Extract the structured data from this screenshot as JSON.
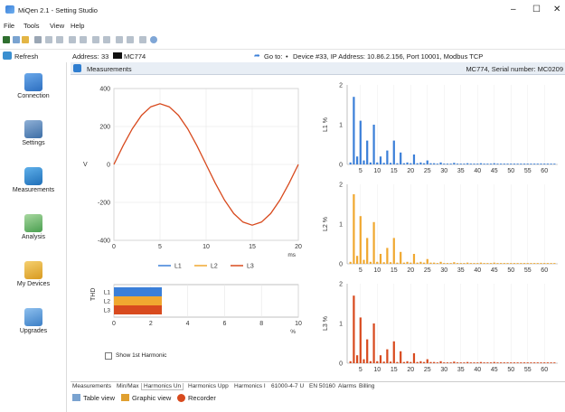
{
  "window": {
    "title": "MiQen 2.1 - Setting Studio",
    "minimize": "–",
    "maximize": "☐",
    "close": "✕"
  },
  "menu": [
    "File",
    "Tools",
    "View",
    "Help"
  ],
  "toolbar": {
    "refresh_label": "Refresh"
  },
  "address": {
    "label": "Address:",
    "value": "33",
    "device_name": "MC774",
    "goto_label": "Go to:",
    "device_info": "Device #33, IP Address: 10.86.2.156, Port 10001, Modbus TCP"
  },
  "sidebar": {
    "items": [
      {
        "label": "Connection",
        "icon": "computer-icon",
        "color": "#3d7fd6"
      },
      {
        "label": "Settings",
        "icon": "settings-icon",
        "color": "#5a7fa8"
      },
      {
        "label": "Measurements",
        "icon": "gauge-icon",
        "color": "#3a8fd0"
      },
      {
        "label": "Analysis",
        "icon": "chart-icon",
        "color": "#4caf50"
      },
      {
        "label": "My Devices",
        "icon": "folder-icon",
        "color": "#e8b030"
      },
      {
        "label": "Upgrades",
        "icon": "upgrade-icon",
        "color": "#4a90d0"
      }
    ]
  },
  "panel": {
    "title": "Measurements",
    "serial": "MC774, Serial number: MC0209"
  },
  "tabs": [
    "Measurements",
    "Min/Max",
    "Harmonics Un",
    "Harmonics Upp",
    "Harmonics I",
    "61000-4-7 U",
    "EN 50160",
    "Alarms",
    "Billing"
  ],
  "active_tab": "Harmonics Un",
  "bottom": {
    "table_view": "Table view",
    "graphic_view": "Graphic view",
    "recorder": "Recorder"
  },
  "show_1st_harmonic": "Show 1st Harmonic",
  "colors": {
    "L1": "#3b7fd8",
    "L2": "#f0a830",
    "L3": "#d84a1e"
  },
  "chart_data": [
    {
      "type": "line",
      "xlabel": "ms",
      "ylabel": "V",
      "xlim": [
        0,
        20
      ],
      "ylim": [
        -400,
        400
      ],
      "xticks": [
        0,
        5,
        10,
        15,
        20
      ],
      "yticks": [
        400,
        200,
        0,
        -200,
        -400
      ],
      "grid": true,
      "legend": [
        "L1",
        "L2",
        "L3"
      ],
      "series": [
        {
          "name": "L3",
          "x": [
            0,
            1,
            2,
            3,
            4,
            5,
            6,
            7,
            8,
            9,
            10,
            11,
            12,
            13,
            14,
            15,
            16,
            17,
            18,
            19,
            20
          ],
          "y": [
            0,
            99,
            188,
            259,
            304,
            320,
            304,
            259,
            188,
            99,
            0,
            -99,
            -188,
            -259,
            -304,
            -320,
            -304,
            -259,
            -188,
            -99,
            0
          ]
        }
      ]
    },
    {
      "type": "bar",
      "orientation": "horizontal",
      "ylabel": "THD",
      "xlabel": "%",
      "xlim": [
        0,
        10
      ],
      "xticks": [
        0,
        2,
        4,
        6,
        8,
        10
      ],
      "categories": [
        "L1",
        "L2",
        "L3"
      ],
      "values": [
        2.6,
        2.6,
        2.6
      ]
    },
    {
      "type": "bar",
      "ylabel": "L1 %",
      "ylim": [
        0,
        2
      ],
      "yticks": [
        0,
        1,
        2
      ],
      "xticks": [
        5,
        10,
        15,
        20,
        25,
        30,
        35,
        40,
        45,
        50,
        55,
        60
      ],
      "harmonics": [
        2,
        3,
        4,
        5,
        6,
        7,
        8,
        9,
        10,
        11,
        12,
        13,
        14,
        15,
        16,
        17,
        18,
        19,
        20,
        21,
        22,
        23,
        24,
        25,
        26,
        27,
        28,
        29,
        30,
        31,
        32,
        33,
        34,
        35,
        36,
        37,
        38,
        39,
        40,
        41,
        42,
        43,
        44,
        45,
        46,
        47,
        48,
        49,
        50,
        51,
        52,
        53,
        54,
        55,
        56,
        57,
        58,
        59,
        60,
        61,
        62,
        63
      ],
      "values": [
        0.05,
        1.7,
        0.2,
        1.1,
        0.1,
        0.6,
        0.05,
        1.0,
        0.05,
        0.2,
        0.04,
        0.35,
        0.04,
        0.6,
        0.03,
        0.3,
        0.03,
        0.05,
        0.03,
        0.25,
        0.03,
        0.05,
        0.03,
        0.1,
        0.03,
        0.03,
        0.02,
        0.05,
        0.02,
        0.02,
        0.02,
        0.04,
        0.02,
        0.02,
        0.02,
        0.03,
        0.02,
        0.02,
        0.02,
        0.03,
        0.02,
        0.02,
        0.02,
        0.03,
        0.02,
        0.02,
        0.02,
        0.02,
        0.02,
        0.02,
        0.02,
        0.02,
        0.02,
        0.02,
        0.02,
        0.02,
        0.02,
        0.02,
        0.02,
        0.02,
        0.02,
        0.02
      ]
    },
    {
      "type": "bar",
      "ylabel": "L2 %",
      "ylim": [
        0,
        2
      ],
      "yticks": [
        0,
        1,
        2
      ],
      "xticks": [
        5,
        10,
        15,
        20,
        25,
        30,
        35,
        40,
        45,
        50,
        55,
        60
      ],
      "harmonics": [
        2,
        3,
        4,
        5,
        6,
        7,
        8,
        9,
        10,
        11,
        12,
        13,
        14,
        15,
        16,
        17,
        18,
        19,
        20,
        21,
        22,
        23,
        24,
        25,
        26,
        27,
        28,
        29,
        30,
        31,
        32,
        33,
        34,
        35,
        36,
        37,
        38,
        39,
        40,
        41,
        42,
        43,
        44,
        45,
        46,
        47,
        48,
        49,
        50,
        51,
        52,
        53,
        54,
        55,
        56,
        57,
        58,
        59,
        60,
        61,
        62,
        63
      ],
      "values": [
        0.05,
        1.75,
        0.2,
        1.2,
        0.1,
        0.65,
        0.05,
        1.05,
        0.05,
        0.25,
        0.04,
        0.4,
        0.04,
        0.65,
        0.03,
        0.3,
        0.03,
        0.05,
        0.03,
        0.25,
        0.03,
        0.05,
        0.03,
        0.12,
        0.03,
        0.03,
        0.02,
        0.05,
        0.02,
        0.02,
        0.02,
        0.04,
        0.02,
        0.02,
        0.02,
        0.03,
        0.02,
        0.02,
        0.02,
        0.03,
        0.02,
        0.02,
        0.02,
        0.03,
        0.02,
        0.02,
        0.02,
        0.02,
        0.02,
        0.02,
        0.02,
        0.02,
        0.02,
        0.02,
        0.02,
        0.02,
        0.02,
        0.02,
        0.02,
        0.02,
        0.02,
        0.02
      ]
    },
    {
      "type": "bar",
      "ylabel": "L3 %",
      "ylim": [
        0,
        2
      ],
      "yticks": [
        0,
        1,
        2
      ],
      "xticks": [
        5,
        10,
        15,
        20,
        25,
        30,
        35,
        40,
        45,
        50,
        55,
        60
      ],
      "harmonics": [
        2,
        3,
        4,
        5,
        6,
        7,
        8,
        9,
        10,
        11,
        12,
        13,
        14,
        15,
        16,
        17,
        18,
        19,
        20,
        21,
        22,
        23,
        24,
        25,
        26,
        27,
        28,
        29,
        30,
        31,
        32,
        33,
        34,
        35,
        36,
        37,
        38,
        39,
        40,
        41,
        42,
        43,
        44,
        45,
        46,
        47,
        48,
        49,
        50,
        51,
        52,
        53,
        54,
        55,
        56,
        57,
        58,
        59,
        60,
        61,
        62,
        63
      ],
      "values": [
        0.05,
        1.7,
        0.2,
        1.15,
        0.1,
        0.6,
        0.05,
        1.0,
        0.05,
        0.2,
        0.04,
        0.35,
        0.04,
        0.55,
        0.03,
        0.3,
        0.03,
        0.05,
        0.03,
        0.25,
        0.03,
        0.05,
        0.03,
        0.1,
        0.03,
        0.03,
        0.02,
        0.05,
        0.02,
        0.02,
        0.02,
        0.04,
        0.02,
        0.02,
        0.02,
        0.03,
        0.02,
        0.02,
        0.02,
        0.03,
        0.02,
        0.02,
        0.02,
        0.03,
        0.02,
        0.02,
        0.02,
        0.02,
        0.02,
        0.02,
        0.02,
        0.02,
        0.02,
        0.02,
        0.02,
        0.02,
        0.02,
        0.02,
        0.02,
        0.02,
        0.02,
        0.02
      ]
    }
  ]
}
